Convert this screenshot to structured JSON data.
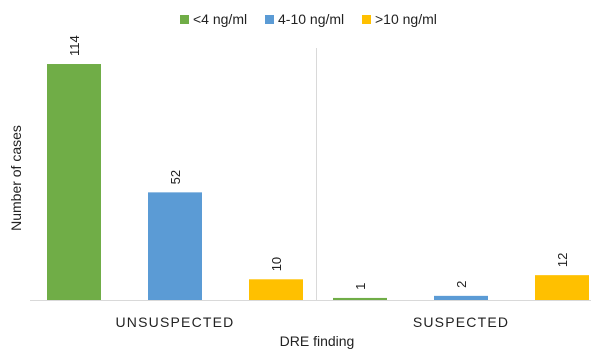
{
  "chart_data": {
    "type": "bar",
    "categories": [
      "UNSUSPECTED",
      "SUSPECTED"
    ],
    "series": [
      {
        "name": "<4 ng/ml",
        "color": "#70ad47",
        "values": [
          114,
          1
        ]
      },
      {
        "name": "4-10 ng/ml",
        "color": "#5b9bd5",
        "values": [
          52,
          2
        ]
      },
      {
        "name": ">10 ng/ml",
        "color": "#ffc000",
        "values": [
          10,
          12
        ]
      }
    ],
    "xlabel": "DRE finding",
    "ylabel": "Number of cases",
    "ylim": [
      0,
      120
    ],
    "grid": false,
    "legend": "top-center"
  }
}
